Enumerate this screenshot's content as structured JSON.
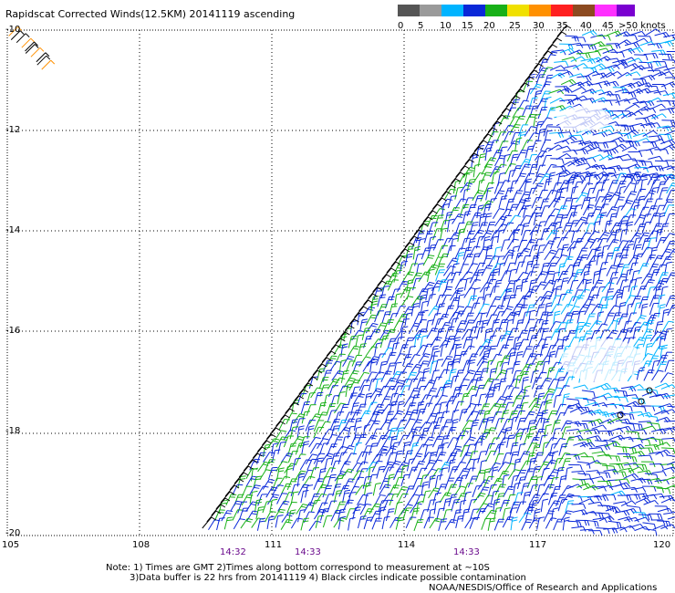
{
  "title": "Rapidscat Corrected Winds(12.5KM) 20141119 ascending",
  "scale": {
    "labels": [
      "0",
      "5",
      "10",
      "15",
      "20",
      "25",
      "30",
      "35",
      "40",
      "45",
      ">50 knots"
    ],
    "colors": [
      "#555555",
      "#9a9a9a",
      "#00b4ff",
      "#0a28d8",
      "#18b018",
      "#f0e000",
      "#ff9000",
      "#ff2020",
      "#8c4a20",
      "#ff30ff",
      "#7a00d0"
    ]
  },
  "axes": {
    "lat_labels": [
      "-10",
      "-12",
      "-14",
      "-16",
      "-18",
      "-20"
    ],
    "lon_labels": [
      "105",
      "108",
      "111",
      "114",
      "117",
      "120"
    ]
  },
  "times": [
    "14:32",
    "14:33",
    "14:33"
  ],
  "notes": {
    "line1": "Note: 1) Times are GMT 2)Times along bottom correspond to measurement at ~10S",
    "line2": "3)Data buffer is 22 hrs from 20141119 4) Black circles indicate possible contamination",
    "credit": "NOAA/NESDIS/Office of Research and Applications"
  }
}
